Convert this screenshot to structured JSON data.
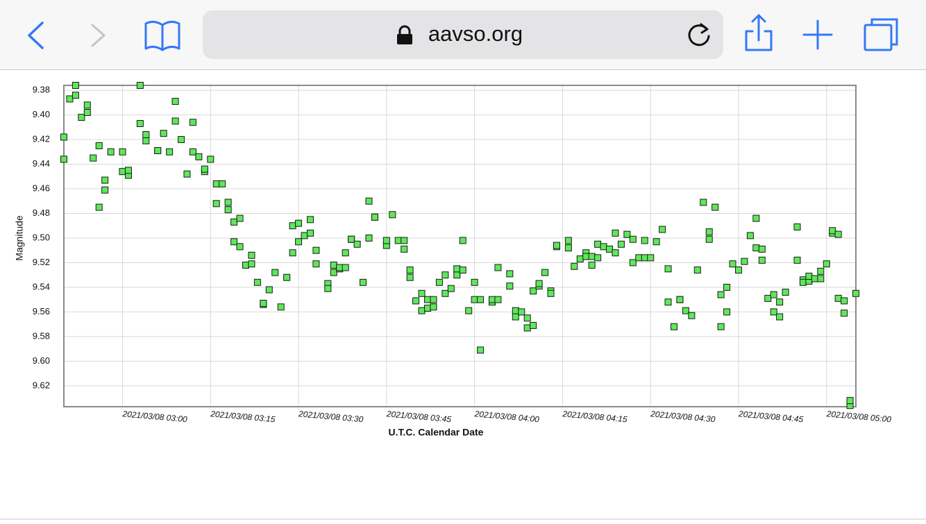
{
  "browser": {
    "url": "aavso.org"
  },
  "chart_data": {
    "type": "scatter",
    "ylabel": "Magnitude",
    "xlabel": "U.T.C. Calendar Date",
    "color": "#5ee85a",
    "edge_color": "#1a1a1a",
    "grid": true,
    "y_inverted": true,
    "ylim": [
      9.376,
      9.637
    ],
    "yticks": [
      9.38,
      {
        "value": 9.4,
        "label": "9.40"
      },
      9.42,
      9.44,
      9.46,
      9.48,
      {
        "value": 9.5,
        "label": "9.50"
      },
      9.52,
      9.54,
      9.56,
      9.58,
      {
        "value": 9.6,
        "label": "9.60"
      },
      9.62
    ],
    "xlim": [
      "2021/03/08 02:50",
      "2021/03/08 05:05"
    ],
    "xticks": [
      "2021/03/08 03:00",
      "2021/03/08 03:15",
      "2021/03/08 03:30",
      "2021/03/08 03:45",
      "2021/03/08 04:00",
      "2021/03/08 04:15",
      "2021/03/08 04:30",
      "2021/03/08 04:45",
      "2021/03/08 05:00"
    ],
    "x": [
      "2021/03/08 02:50",
      "2021/03/08 02:50",
      "2021/03/08 02:51",
      "2021/03/08 02:52",
      "2021/03/08 02:52",
      "2021/03/08 02:53",
      "2021/03/08 02:54",
      "2021/03/08 02:54",
      "2021/03/08 02:55",
      "2021/03/08 02:56",
      "2021/03/08 02:56",
      "2021/03/08 02:57",
      "2021/03/08 02:57",
      "2021/03/08 02:58",
      "2021/03/08 03:00",
      "2021/03/08 03:00",
      "2021/03/08 03:01",
      "2021/03/08 03:01",
      "2021/03/08 03:03",
      "2021/03/08 03:03",
      "2021/03/08 03:04",
      "2021/03/08 03:04",
      "2021/03/08 03:06",
      "2021/03/08 03:06",
      "2021/03/08 03:07",
      "2021/03/08 03:08",
      "2021/03/08 03:09",
      "2021/03/08 03:09",
      "2021/03/08 03:10",
      "2021/03/08 03:11",
      "2021/03/08 03:12",
      "2021/03/08 03:12",
      "2021/03/08 03:13",
      "2021/03/08 03:14",
      "2021/03/08 03:14",
      "2021/03/08 03:15",
      "2021/03/08 03:16",
      "2021/03/08 03:17",
      "2021/03/08 03:16",
      "2021/03/08 03:18",
      "2021/03/08 03:18",
      "2021/03/08 03:19",
      "2021/03/08 03:20",
      "2021/03/08 03:19",
      "2021/03/08 03:20",
      "2021/03/08 03:21",
      "2021/03/08 03:22",
      "2021/03/08 03:22",
      "2021/03/08 03:23",
      "2021/03/08 03:24",
      "2021/03/08 03:24",
      "2021/03/08 03:25",
      "2021/03/08 03:26",
      "2021/03/08 03:27",
      "2021/03/08 03:28",
      "2021/03/08 03:29",
      "2021/03/08 03:29",
      "2021/03/08 03:30",
      "2021/03/08 03:30",
      "2021/03/08 03:31",
      "2021/03/08 03:32",
      "2021/03/08 03:32",
      "2021/03/08 03:33",
      "2021/03/08 03:33",
      "2021/03/08 03:35",
      "2021/03/08 03:35",
      "2021/03/08 03:36",
      "2021/03/08 03:36",
      "2021/03/08 03:37",
      "2021/03/08 03:37",
      "2021/03/08 03:38",
      "2021/03/08 03:38",
      "2021/03/08 03:39",
      "2021/03/08 03:39",
      "2021/03/08 03:40",
      "2021/03/08 03:41",
      "2021/03/08 03:42",
      "2021/03/08 03:42",
      "2021/03/08 03:43",
      "2021/03/08 03:43",
      "2021/03/08 03:45",
      "2021/03/08 03:45",
      "2021/03/08 03:46",
      "2021/03/08 03:47",
      "2021/03/08 03:48",
      "2021/03/08 03:48",
      "2021/03/08 03:49",
      "2021/03/08 03:49",
      "2021/03/08 03:50",
      "2021/03/08 03:51",
      "2021/03/08 03:51",
      "2021/03/08 03:52",
      "2021/03/08 03:52",
      "2021/03/08 03:53",
      "2021/03/08 03:53",
      "2021/03/08 03:54",
      "2021/03/08 03:55",
      "2021/03/08 03:55",
      "2021/03/08 03:56",
      "2021/03/08 03:57",
      "2021/03/08 03:57",
      "2021/03/08 03:58",
      "2021/03/08 03:58",
      "2021/03/08 03:59",
      "2021/03/08 04:00",
      "2021/03/08 04:00",
      "2021/03/08 04:01",
      "2021/03/08 04:01",
      "2021/03/08 04:03",
      "2021/03/08 04:03",
      "2021/03/08 04:04",
      "2021/03/08 04:04",
      "2021/03/08 04:06",
      "2021/03/08 04:06",
      "2021/03/08 04:07",
      "2021/03/08 04:07",
      "2021/03/08 04:08",
      "2021/03/08 04:09",
      "2021/03/08 04:09",
      "2021/03/08 04:10",
      "2021/03/08 04:10",
      "2021/03/08 04:11",
      "2021/03/08 04:11",
      "2021/03/08 04:12",
      "2021/03/08 04:13",
      "2021/03/08 04:13",
      "2021/03/08 04:14",
      "2021/03/08 04:14",
      "2021/03/08 04:16",
      "2021/03/08 04:16",
      "2021/03/08 04:17",
      "2021/03/08 04:18",
      "2021/03/08 04:19",
      "2021/03/08 04:19",
      "2021/03/08 04:20",
      "2021/03/08 04:20",
      "2021/03/08 04:21",
      "2021/03/08 04:21",
      "2021/03/08 04:22",
      "2021/03/08 04:23",
      "2021/03/08 04:24",
      "2021/03/08 04:24",
      "2021/03/08 04:25",
      "2021/03/08 04:26",
      "2021/03/08 04:27",
      "2021/03/08 04:27",
      "2021/03/08 04:28",
      "2021/03/08 04:29",
      "2021/03/08 04:29",
      "2021/03/08 04:30",
      "2021/03/08 04:31",
      "2021/03/08 04:32",
      "2021/03/08 04:33",
      "2021/03/08 04:33",
      "2021/03/08 04:34",
      "2021/03/08 04:35",
      "2021/03/08 04:35",
      "2021/03/08 04:36",
      "2021/03/08 04:37",
      "2021/03/08 04:38",
      "2021/03/08 04:39",
      "2021/03/08 04:40",
      "2021/03/08 04:40",
      "2021/03/08 04:41",
      "2021/03/08 04:42",
      "2021/03/08 04:42",
      "2021/03/08 04:43",
      "2021/03/08 04:43",
      "2021/03/08 04:44",
      "2021/03/08 04:45",
      "2021/03/08 04:46",
      "2021/03/08 04:47",
      "2021/03/08 04:48",
      "2021/03/08 04:48",
      "2021/03/08 04:49",
      "2021/03/08 04:49",
      "2021/03/08 04:50",
      "2021/03/08 04:51",
      "2021/03/08 04:51",
      "2021/03/08 04:52",
      "2021/03/08 04:52",
      "2021/03/08 04:53",
      "2021/03/08 04:55",
      "2021/03/08 04:55",
      "2021/03/08 04:56",
      "2021/03/08 04:56",
      "2021/03/08 04:57",
      "2021/03/08 04:57",
      "2021/03/08 04:58",
      "2021/03/08 04:59",
      "2021/03/08 04:59",
      "2021/03/08 05:00",
      "2021/03/08 05:01",
      "2021/03/08 05:01",
      "2021/03/08 05:02",
      "2021/03/08 05:02",
      "2021/03/08 05:03",
      "2021/03/08 05:03",
      "2021/03/08 05:04",
      "2021/03/08 05:04",
      "2021/03/08 05:05"
    ],
    "values": [
      9.418,
      9.436,
      9.387,
      9.384,
      9.376,
      9.402,
      9.392,
      9.398,
      9.435,
      9.425,
      9.475,
      9.461,
      9.453,
      9.43,
      9.43,
      9.446,
      9.449,
      9.445,
      9.376,
      9.407,
      9.421,
      9.416,
      9.429,
      9.429,
      9.415,
      9.43,
      9.389,
      9.405,
      9.42,
      9.448,
      9.43,
      9.406,
      9.434,
      9.446,
      9.444,
      9.436,
      9.456,
      9.456,
      9.472,
      9.477,
      9.471,
      9.487,
      9.484,
      9.503,
      9.507,
      9.522,
      9.521,
      9.514,
      9.536,
      9.554,
      9.553,
      9.542,
      9.528,
      9.556,
      9.532,
      9.512,
      9.49,
      9.488,
      9.503,
      9.498,
      9.485,
      9.496,
      9.51,
      9.521,
      9.537,
      9.541,
      9.528,
      9.522,
      9.525,
      9.524,
      9.524,
      9.512,
      9.501,
      9.501,
      9.505,
      9.536,
      9.5,
      9.47,
      9.483,
      9.483,
      9.506,
      9.502,
      9.481,
      9.502,
      9.502,
      9.509,
      9.526,
      9.532,
      9.551,
      9.545,
      9.559,
      9.557,
      9.55,
      9.556,
      9.55,
      9.536,
      9.545,
      9.53,
      9.541,
      9.53,
      9.525,
      9.502,
      9.526,
      9.559,
      9.536,
      9.55,
      9.55,
      9.591,
      9.552,
      9.55,
      9.55,
      9.524,
      9.539,
      9.529,
      9.564,
      9.559,
      9.56,
      9.573,
      9.565,
      9.571,
      9.543,
      9.539,
      9.537,
      9.528,
      9.543,
      9.545,
      9.507,
      9.506,
      9.502,
      9.508,
      9.523,
      9.517,
      9.512,
      9.515,
      9.515,
      9.522,
      9.516,
      9.505,
      9.507,
      9.509,
      9.512,
      9.496,
      9.505,
      9.497,
      9.501,
      9.52,
      9.516,
      9.516,
      9.502,
      9.516,
      9.503,
      9.493,
      9.525,
      9.552,
      9.572,
      9.55,
      9.55,
      9.559,
      9.563,
      9.526,
      9.471,
      9.495,
      9.501,
      9.475,
      9.546,
      9.572,
      9.56,
      9.54,
      9.521,
      9.526,
      9.519,
      9.498,
      9.484,
      9.508,
      9.509,
      9.518,
      9.549,
      9.546,
      9.56,
      9.564,
      9.552,
      9.544,
      9.491,
      9.518,
      9.534,
      9.536,
      9.535,
      9.531,
      9.533,
      9.533,
      9.527,
      9.521,
      9.496,
      9.494,
      9.497,
      9.549,
      9.561,
      9.551,
      9.636,
      9.632,
      9.545
    ]
  }
}
